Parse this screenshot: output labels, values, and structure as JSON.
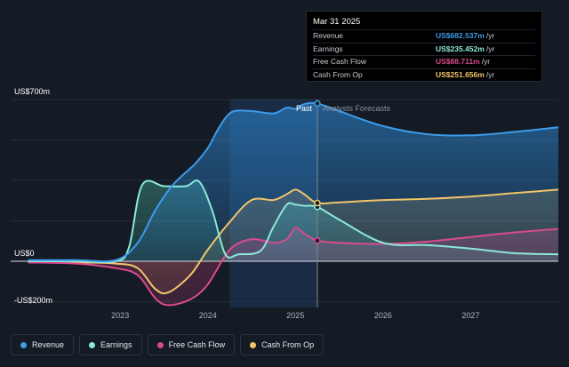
{
  "chart_data": {
    "type": "area",
    "ylim": [
      -200,
      700
    ],
    "y_tick_labels": [
      {
        "value": 700,
        "label": "US$700m"
      },
      {
        "value": 0,
        "label": "US$0"
      },
      {
        "value": -200,
        "label": "-US$200m"
      }
    ],
    "x_tick_labels": [
      {
        "value": 2023.0,
        "label": "2023"
      },
      {
        "value": 2024.0,
        "label": "2024"
      },
      {
        "value": 2025.0,
        "label": "2025"
      },
      {
        "value": 2026.0,
        "label": "2026"
      },
      {
        "value": 2027.0,
        "label": "2027"
      }
    ],
    "xlim": [
      2021.75,
      2028.0
    ],
    "divider_x": 2025.25,
    "highlight_start_x": 2024.25,
    "past_label": "Past",
    "forecast_label": "Analysts Forecasts",
    "series": [
      {
        "name": "Revenue",
        "color": "#3d9be9",
        "x": [
          2021.95,
          2022.5,
          2022.95,
          2023.2,
          2023.4,
          2023.6,
          2023.85,
          2024.0,
          2024.1,
          2024.2,
          2024.3,
          2024.5,
          2024.75,
          2024.9,
          2025.0,
          2025.1,
          2025.25,
          2025.5,
          2026.0,
          2026.5,
          2027.0,
          2027.5,
          2028.0
        ],
        "values": [
          5,
          5,
          5,
          80,
          220,
          330,
          420,
          490,
          560,
          620,
          650,
          650,
          640,
          665,
          660,
          680,
          683,
          650,
          585,
          550,
          545,
          560,
          580
        ]
      },
      {
        "name": "Earnings",
        "color": "#8ce8d8",
        "x": [
          2021.95,
          2022.5,
          2022.95,
          2023.1,
          2023.25,
          2023.5,
          2023.75,
          2023.9,
          2024.05,
          2024.2,
          2024.35,
          2024.6,
          2024.75,
          2024.9,
          2025.0,
          2025.1,
          2025.25,
          2025.5,
          2026.0,
          2026.5,
          2027.0,
          2027.5,
          2028.0
        ],
        "values": [
          0,
          0,
          0,
          60,
          330,
          325,
          325,
          345,
          220,
          30,
          30,
          45,
          150,
          245,
          245,
          240,
          235,
          180,
          80,
          70,
          55,
          35,
          30
        ]
      },
      {
        "name": "Free Cash Flow",
        "color": "#d94b8b",
        "x": [
          2021.95,
          2022.5,
          2022.95,
          2023.2,
          2023.4,
          2023.55,
          2023.8,
          2024.0,
          2024.25,
          2024.5,
          2024.75,
          2024.9,
          2025.0,
          2025.1,
          2025.25,
          2025.5,
          2026.0,
          2026.5,
          2027.0,
          2027.5,
          2028.0
        ],
        "values": [
          -5,
          -10,
          -30,
          -60,
          -160,
          -190,
          -165,
          -100,
          50,
          95,
          80,
          95,
          145,
          120,
          89,
          80,
          75,
          85,
          105,
          125,
          140
        ]
      },
      {
        "name": "Cash From Op",
        "color": "#f1c46b",
        "x": [
          2021.95,
          2022.5,
          2022.95,
          2023.2,
          2023.4,
          2023.55,
          2023.8,
          2024.0,
          2024.25,
          2024.5,
          2024.75,
          2024.9,
          2025.0,
          2025.1,
          2025.25,
          2025.5,
          2026.0,
          2026.5,
          2027.0,
          2027.5,
          2028.0
        ],
        "values": [
          -5,
          -5,
          -10,
          -30,
          -120,
          -135,
          -60,
          50,
          170,
          265,
          265,
          290,
          310,
          290,
          252,
          255,
          265,
          270,
          280,
          295,
          310
        ]
      }
    ],
    "tooltip": {
      "title": "Mar 31 2025",
      "rows": [
        {
          "label": "Revenue",
          "value": "US$682.537m",
          "unit": "/yr",
          "color": "#3d9be9"
        },
        {
          "label": "Earnings",
          "value": "US$235.452m",
          "unit": "/yr",
          "color": "#8ce8d8"
        },
        {
          "label": "Free Cash Flow",
          "value": "US$88.711m",
          "unit": "/yr",
          "color": "#d94b8b"
        },
        {
          "label": "Cash From Op",
          "value": "US$251.656m",
          "unit": "/yr",
          "color": "#f1c46b"
        }
      ]
    },
    "legend": [
      {
        "label": "Revenue",
        "color": "#3d9be9"
      },
      {
        "label": "Earnings",
        "color": "#8ce8d8"
      },
      {
        "label": "Free Cash Flow",
        "color": "#d94b8b"
      },
      {
        "label": "Cash From Op",
        "color": "#f1c46b"
      }
    ],
    "legend_placement": "bottom-left",
    "grid": true
  }
}
